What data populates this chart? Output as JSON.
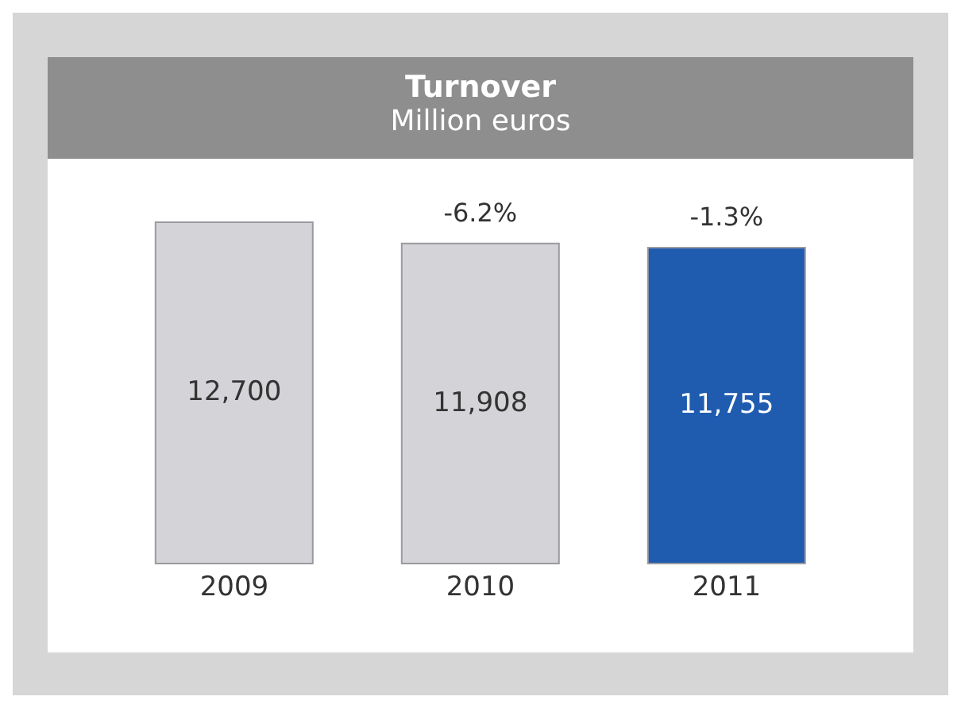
{
  "chart_data": {
    "type": "bar",
    "title": "Turnover",
    "subtitle": "Million euros",
    "categories": [
      "2009",
      "2010",
      "2011"
    ],
    "values": [
      12700,
      11908,
      11755
    ],
    "value_labels": [
      "12,700",
      "11,908",
      "11,755"
    ],
    "colors": [
      "#d4d4d8",
      "#d4d4d8",
      "#1f5cb0"
    ],
    "annotations": [
      "-6.2%",
      "-1.3%"
    ]
  }
}
